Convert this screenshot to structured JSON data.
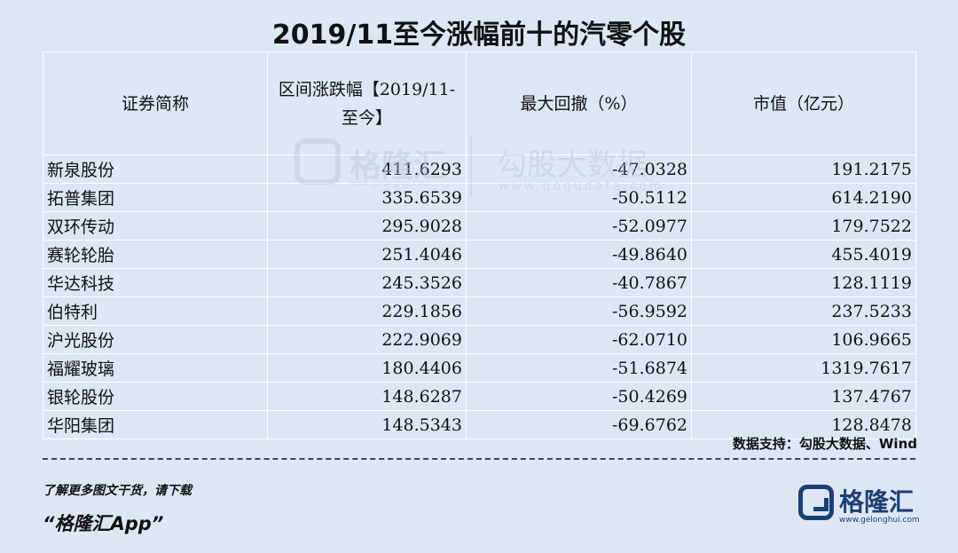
{
  "title": "2019/11至今涨幅前十的汽零个股",
  "table": {
    "headers": [
      "证券简称",
      "区间涨跌幅【2019/11-至今】",
      "最大回撤（%）",
      "市值（亿元）"
    ],
    "rows": [
      [
        "新泉股份",
        "411.6293",
        "-47.0328",
        "191.2175"
      ],
      [
        "拓普集团",
        "335.6539",
        "-50.5112",
        "614.2190"
      ],
      [
        "双环传动",
        "295.9028",
        "-52.0977",
        "179.7522"
      ],
      [
        "赛轮轮胎",
        "251.4046",
        "-49.8640",
        "455.4019"
      ],
      [
        "华达科技",
        "245.3526",
        "-40.7867",
        "128.1119"
      ],
      [
        "伯特利",
        "229.1856",
        "-56.9592",
        "237.5233"
      ],
      [
        "沪光股份",
        "222.9069",
        "-62.0710",
        "106.9665"
      ],
      [
        "福耀玻璃",
        "180.4406",
        "-51.6874",
        "1319.7617"
      ],
      [
        "银轮股份",
        "148.6287",
        "-50.4269",
        "137.4767"
      ],
      [
        "华阳集团",
        "148.5343",
        "-69.6762",
        "128.8478"
      ]
    ]
  },
  "watermark": {
    "brand": "格隆汇",
    "brand_url": "www.gelonghui.com",
    "data_brand": "勾股大数据",
    "data_url": "www.gogudata.com"
  },
  "source": "数据支持：勾股大数据、Wind",
  "promo": "了解更多图文干货，请下载",
  "app_name": "“格隆汇App”",
  "footer_brand": {
    "name": "格隆汇",
    "url": "www.gelonghui.com",
    "color": "#1d3f77"
  }
}
